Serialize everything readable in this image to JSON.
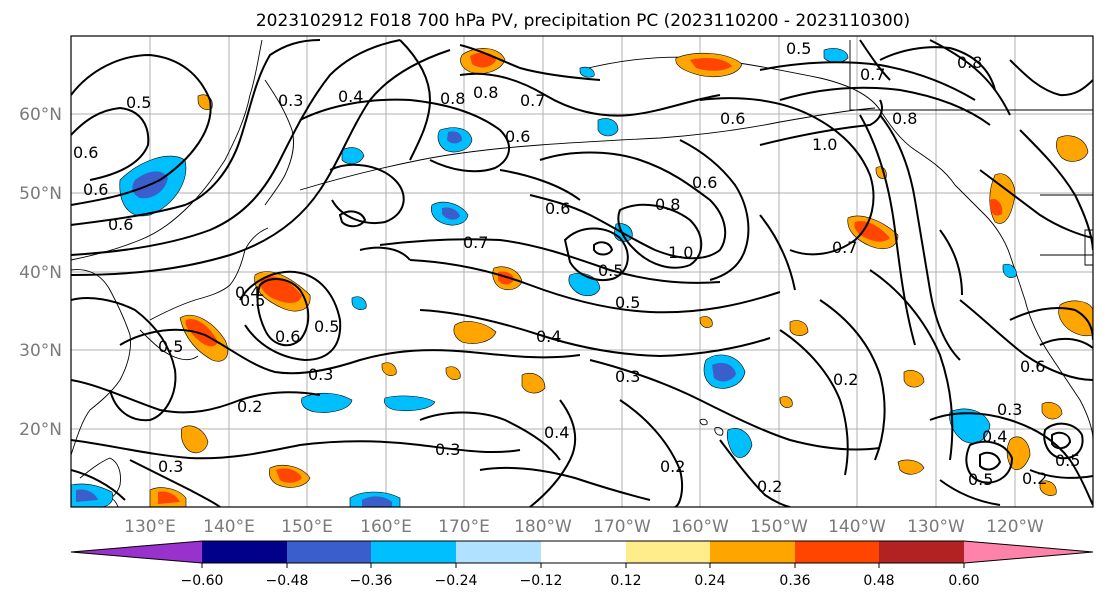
{
  "title": "2023102912 F018 700 hPa PV, precipitation PC (2023110200 - 2023110300)",
  "map": {
    "lat_labels": [
      "60°N",
      "50°N",
      "40°N",
      "30°N",
      "20°N"
    ],
    "lon_labels": [
      "130°E",
      "140°E",
      "150°E",
      "160°E",
      "170°E",
      "180°W",
      "170°W",
      "160°W",
      "150°W",
      "140°W",
      "130°W",
      "120°W"
    ]
  },
  "colorbar": {
    "colors": [
      "#9932cc",
      "#00008b",
      "#3a5fcd",
      "#00bfff",
      "#b0e2ff",
      "#ffffff",
      "#ffec8b",
      "#ffa500",
      "#ff4500",
      "#b22222",
      "#ff82ab"
    ],
    "tick_labels": [
      "−0.60",
      "−0.48",
      "−0.36",
      "−0.24",
      "−0.12",
      "0.12",
      "0.24",
      "0.36",
      "0.48",
      "0.60"
    ]
  },
  "contour_labels": [
    {
      "text": "0.5"
    },
    {
      "text": "0.3"
    },
    {
      "text": "0.4"
    },
    {
      "text": "0.8"
    },
    {
      "text": "0.7"
    },
    {
      "text": "0.6"
    },
    {
      "text": "0.6"
    },
    {
      "text": "0.5"
    },
    {
      "text": "0.6"
    },
    {
      "text": "0.7"
    },
    {
      "text": "0.8"
    },
    {
      "text": "0.6"
    },
    {
      "text": "1.0"
    },
    {
      "text": "0.6"
    },
    {
      "text": "0.8"
    },
    {
      "text": "0.6"
    },
    {
      "text": "0.8"
    },
    {
      "text": "0.6"
    },
    {
      "text": "0.8"
    },
    {
      "text": "0.7"
    },
    {
      "text": "1.0"
    },
    {
      "text": "0.5"
    },
    {
      "text": "0.7"
    },
    {
      "text": "0.5"
    },
    {
      "text": "0.4"
    },
    {
      "text": "0.6"
    },
    {
      "text": "0.5"
    },
    {
      "text": "0.5"
    },
    {
      "text": "0.3"
    },
    {
      "text": "0.4"
    },
    {
      "text": "0.3"
    },
    {
      "text": "0.2"
    },
    {
      "text": "0.3"
    },
    {
      "text": "0.4"
    },
    {
      "text": "0.3"
    },
    {
      "text": "0.2"
    },
    {
      "text": "0.2"
    },
    {
      "text": "0.2"
    },
    {
      "text": "0.3"
    },
    {
      "text": "0.4"
    },
    {
      "text": "0.6"
    },
    {
      "text": "0.5"
    },
    {
      "text": "0.5"
    },
    {
      "text": "0.2"
    },
    {
      "text": "0.5"
    }
  ]
}
